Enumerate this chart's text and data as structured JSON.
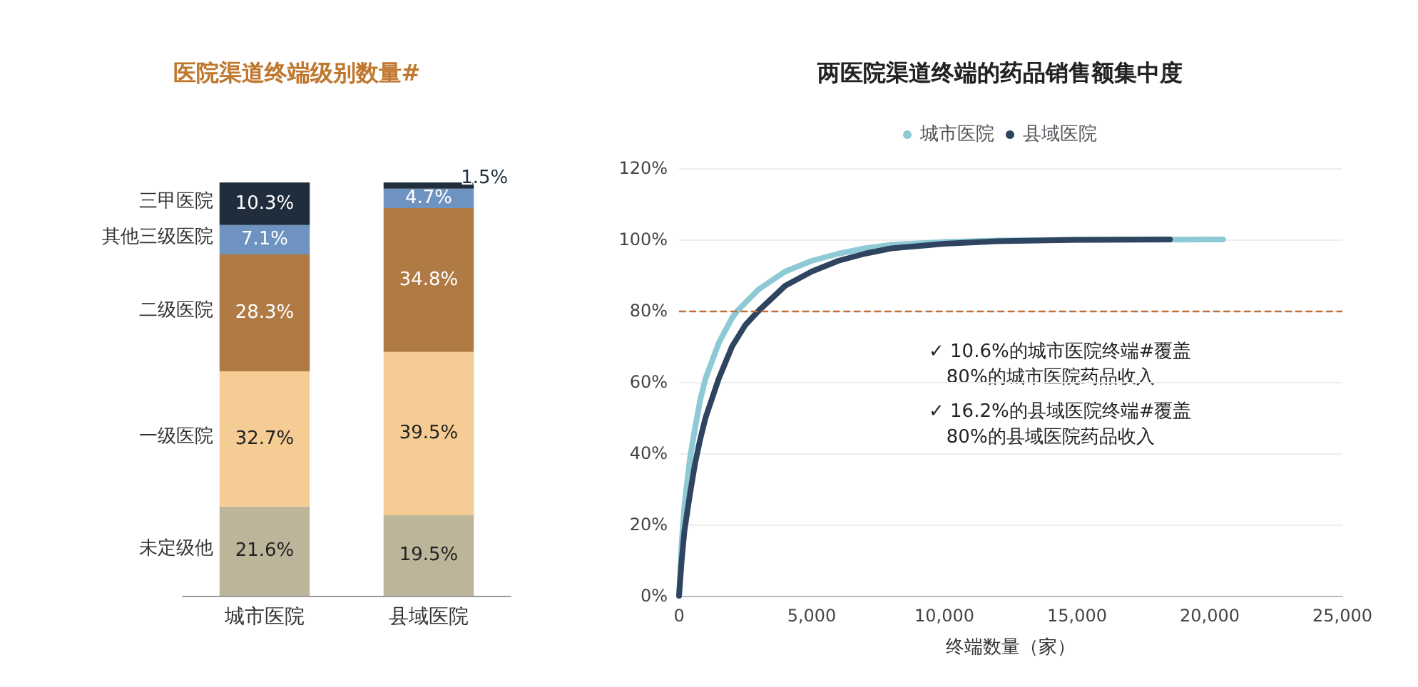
{
  "chart_data": [
    {
      "type": "bar",
      "title": "医院渠道终端级别数量#",
      "categories": [
        "城市医院",
        "县域医院"
      ],
      "stacked": true,
      "tick_labels": "x",
      "legend": false,
      "grid": false,
      "series": [
        {
          "name": "未定级他",
          "color": "#bcb59a",
          "values": [
            21.6,
            19.5
          ],
          "value_labels": [
            "21.6%",
            "19.5%"
          ]
        },
        {
          "name": "一级医院",
          "color": "#f5cc94",
          "values": [
            32.7,
            39.5
          ],
          "value_labels": [
            "32.7%",
            "39.5%"
          ]
        },
        {
          "name": "二级医院",
          "color": "#b07a45",
          "values": [
            28.3,
            34.8
          ],
          "value_labels": [
            "28.3%",
            "34.8%"
          ]
        },
        {
          "name": "其他三级医院",
          "color": "#6f93c0",
          "values": [
            7.1,
            4.7
          ],
          "value_labels": [
            "7.1%",
            "4.7%"
          ]
        },
        {
          "name": "三甲医院",
          "color": "#1f2d3d",
          "values": [
            10.3,
            1.5
          ],
          "value_labels": [
            "10.3%",
            "1.5%"
          ]
        }
      ]
    },
    {
      "type": "line",
      "title": "两医院渠道终端的药品销售额集中度",
      "xlabel": "终端数量（家）",
      "legend": "top",
      "grid": "y",
      "marker": "none",
      "xlim": [
        0,
        25000
      ],
      "xticks": [
        0,
        {
          "value": 5000,
          "label": "5,000"
        },
        {
          "value": 10000,
          "label": "10,000"
        },
        {
          "value": 15000,
          "label": "15,000"
        },
        {
          "value": 20000,
          "label": "20,000"
        },
        {
          "value": 25000,
          "label": "25,000"
        }
      ],
      "ylim": [
        0,
        120
      ],
      "yticks": [
        {
          "value": 0,
          "label": "0%"
        },
        {
          "value": 20,
          "label": "20%"
        },
        {
          "value": 40,
          "label": "40%"
        },
        {
          "value": 60,
          "label": "60%"
        },
        {
          "value": 80,
          "label": "80%"
        },
        {
          "value": 100,
          "label": "100%"
        },
        {
          "value": 120,
          "label": "120%"
        }
      ],
      "ref_lines": [
        {
          "axis": "y",
          "value": 80,
          "color": "#c0703a",
          "line_style": "dashed"
        }
      ],
      "annotations": [
        "✓ 10.6%的城市医院终端#覆盖\n   80%的城市医院药品收入",
        "✓ 16.2%的县域医院终端#覆盖\n   80%的县域医院药品收入"
      ],
      "series": [
        {
          "name": "城市医院",
          "color": "#8ecad6",
          "x": [
            0,
            100,
            200,
            400,
            600,
            800,
            1000,
            1500,
            2000,
            2200,
            3000,
            4000,
            5000,
            6000,
            7000,
            8000,
            10000,
            12000,
            15000,
            20500
          ],
          "values": [
            0,
            15,
            25,
            38,
            47,
            55,
            61,
            71,
            78,
            80,
            86,
            91,
            94,
            96,
            97.5,
            98.5,
            99.3,
            99.7,
            99.9,
            100
          ]
        },
        {
          "name": "县域医院",
          "color": "#2e4460",
          "x": [
            0,
            100,
            200,
            400,
            600,
            800,
            1000,
            1500,
            2000,
            2500,
            3000,
            4000,
            5000,
            6000,
            7000,
            8000,
            10000,
            12000,
            15000,
            18500
          ],
          "values": [
            0,
            10,
            18,
            28,
            37,
            44,
            50,
            61,
            70,
            76,
            80,
            87,
            91,
            94,
            96,
            97.5,
            98.8,
            99.5,
            99.9,
            100
          ]
        }
      ]
    }
  ]
}
